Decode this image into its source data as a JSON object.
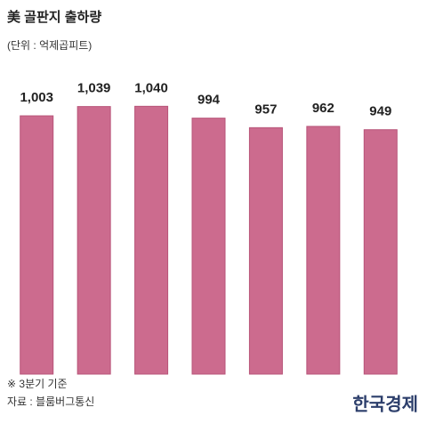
{
  "chart_data": {
    "type": "bar",
    "title": "美 골판지 출하량",
    "subtitle": "(단위 : 억제곱피트)",
    "categories": [
      null,
      null,
      null,
      null,
      null,
      null,
      null
    ],
    "values": [
      1003,
      1039,
      1040,
      994,
      957,
      962,
      949
    ],
    "value_labels": [
      "1,003",
      "1,039",
      "1,040",
      "994",
      "957",
      "962",
      "949"
    ],
    "color": "#cc6b8e",
    "ylim": [
      0,
      1100
    ],
    "notes": [
      "※ 3분기 기준",
      "자료 : 블룸버그통신"
    ],
    "source_logo": "한국경제"
  }
}
